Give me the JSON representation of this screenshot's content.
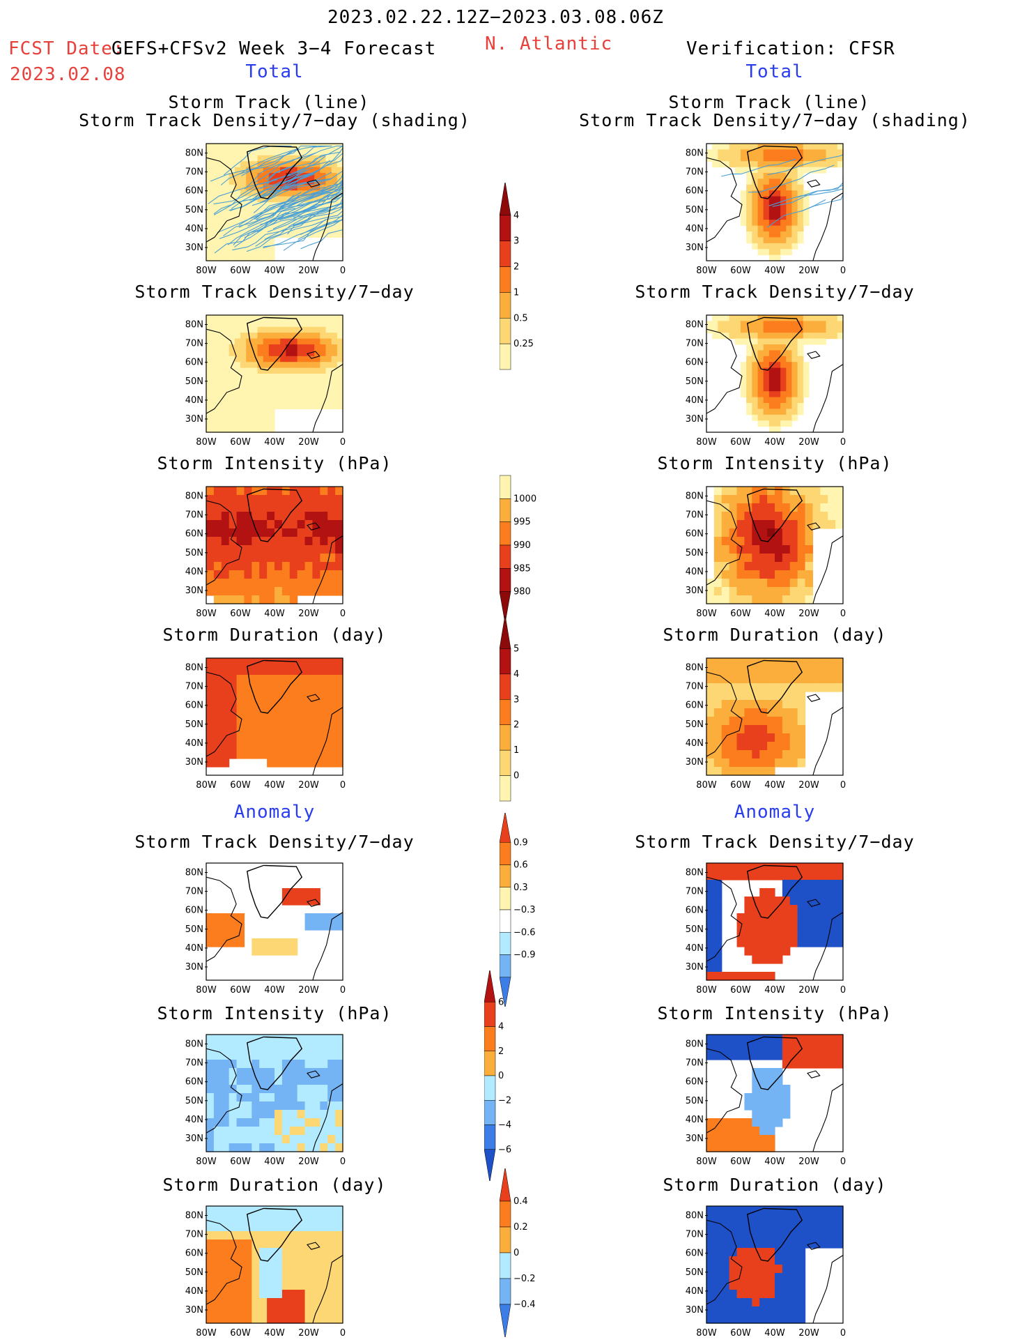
{
  "header": {
    "period": "2023.02.22.12Z−2023.03.08.06Z",
    "fcst_label": "FCST Date:",
    "fcst_date": "2023.02.08",
    "model": "GEFS+CFSv2 Week 3−4 Forecast",
    "region": "N. Atlantic",
    "verification": "Verification: CFSR"
  },
  "sections": {
    "total": "Total",
    "anomaly": "Anomaly"
  },
  "panel_titles": {
    "track_line": "Storm Track (line)",
    "track_shading": "Storm Track Density/7−day (shading)",
    "density": "Storm Track Density/7−day",
    "intensity": "Storm Intensity (hPa)",
    "duration": "Storm Duration (day)"
  },
  "axes": {
    "lat": [
      "80N",
      "70N",
      "60N",
      "50N",
      "40N",
      "30N"
    ],
    "lon": [
      "80W",
      "60W",
      "40W",
      "20W",
      "0"
    ]
  },
  "colorbars": {
    "density_total": [
      "4",
      "3",
      "2",
      "1",
      "0.5",
      "0.25"
    ],
    "intensity_total": [
      "1000",
      "995",
      "990",
      "985",
      "980"
    ],
    "duration_total": [
      "5",
      "4",
      "3",
      "2",
      "1",
      "0"
    ],
    "density_anom": [
      "0.9",
      "0.6",
      "0.3",
      "−0.3",
      "−0.6",
      "−0.9"
    ],
    "intensity_anom": [
      "6",
      "4",
      "2",
      "0",
      "−2",
      "−4",
      "−6"
    ],
    "duration_anom": [
      "0.4",
      "0.2",
      "0",
      "−0.2",
      "−0.4"
    ]
  },
  "colors": {
    "warm": [
      "#fff5b0",
      "#fcd773",
      "#fcae3c",
      "#fb7d1d",
      "#e8401d",
      "#b31212",
      "#8c0a0a"
    ],
    "cool": [
      "#ffffff",
      "#b2ebff",
      "#74b4f5",
      "#3c7ee6",
      "#1e50c8"
    ],
    "track_line": "#4a9fd6"
  }
}
